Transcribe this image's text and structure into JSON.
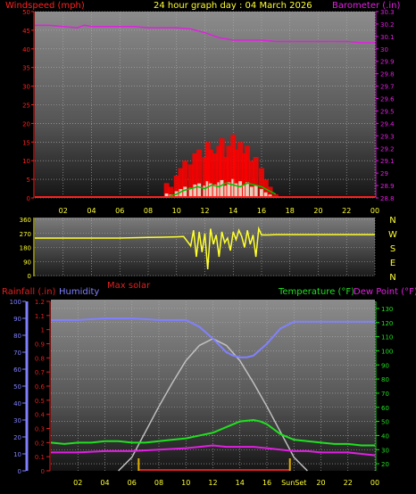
{
  "header": {
    "left_label": "Windspeed (mph)",
    "title": "24 hour graph day : 04 March 2026",
    "right_label": "Barometer (.in)"
  },
  "bottom_labels": {
    "rainfall": "Rainfall (.in)",
    "humidity": "Humidity",
    "max_solar": "Max solar",
    "temperature": "Temperature (°F)",
    "dew_point": "Dew Point (°F)"
  },
  "sun_labels": {
    "sunrise": "Sun",
    "sunset": "Set"
  },
  "colors": {
    "wind": "#ff2020",
    "gust_fill": "#ff0000",
    "avg_wind": "#00c000",
    "barometer": "#e020e0",
    "direction": "#ffff30",
    "humidity": "#8080ff",
    "temperature": "#20e020",
    "dew_point": "#e020e0",
    "solar": "#c0c0c0",
    "rain_axis": "#e02020",
    "sun_marker": "#e0b000"
  },
  "compass": [
    "N",
    "W",
    "S",
    "E",
    "N"
  ],
  "chart_data": [
    {
      "type": "line",
      "name": "wind_barometer",
      "x_ticks": [
        "02",
        "04",
        "06",
        "08",
        "10",
        "12",
        "14",
        "16",
        "18",
        "20",
        "22",
        "00"
      ],
      "ylabel": "Windspeed (mph)",
      "ylim": [
        0,
        50
      ],
      "y_ticks": [
        "0",
        "5",
        "10",
        "15",
        "20",
        "25",
        "30",
        "35",
        "40",
        "45",
        "50"
      ],
      "y2label": "Barometer (.in)",
      "y2lim": [
        28.8,
        30.3
      ],
      "y2_ticks": [
        "28.8",
        "28.9",
        "29",
        "29.1",
        "29.2",
        "29.3",
        "29.4",
        "29.5",
        "29.6",
        "29.7",
        "29.8",
        "29.9",
        "30",
        "30.1",
        "30.2",
        "30.3"
      ],
      "barometer": {
        "x": [
          0,
          1,
          2,
          3,
          3.5,
          4,
          5,
          6,
          7,
          8,
          9,
          10,
          11,
          12,
          12.5,
          13,
          13.5,
          14,
          15,
          16,
          17,
          18,
          19,
          20,
          21,
          22,
          23,
          24
        ],
        "y": [
          30.19,
          30.19,
          30.18,
          30.17,
          30.19,
          30.18,
          30.18,
          30.18,
          30.18,
          30.17,
          30.17,
          30.17,
          30.16,
          30.13,
          30.11,
          30.09,
          30.08,
          30.07,
          30.07,
          30.07,
          30.06,
          30.06,
          30.06,
          30.06,
          30.06,
          30.06,
          30.05,
          30.05
        ]
      },
      "wind": {
        "x": [
          9.3,
          9.6,
          10,
          10.3,
          10.6,
          11,
          11.3,
          11.6,
          12,
          12.2,
          12.4,
          12.7,
          13,
          13.2,
          13.5,
          13.7,
          14,
          14.2,
          14.5,
          14.8,
          15,
          15.3,
          15.6,
          16,
          16.3,
          16.6,
          17
        ],
        "y": [
          4,
          3,
          6,
          8,
          10,
          9,
          12,
          13,
          11,
          15,
          13,
          12,
          14,
          16,
          11,
          14,
          17,
          13,
          15,
          12,
          14,
          10,
          11,
          8,
          5,
          3,
          1
        ]
      },
      "avg_wind": {
        "x": [
          9.5,
          10,
          10.5,
          11,
          11.5,
          12,
          12.5,
          13,
          13.5,
          14,
          14.5,
          15,
          15.5,
          16,
          16.5,
          17
        ],
        "y": [
          0.5,
          1,
          2,
          2.5,
          3,
          2.5,
          3.5,
          3,
          4,
          3.5,
          3,
          4,
          3.5,
          3,
          2,
          1
        ]
      }
    },
    {
      "type": "scatter",
      "name": "wind_direction",
      "ylim": [
        0,
        360
      ],
      "y_ticks": [
        "0",
        "90",
        "180",
        "270",
        "360"
      ],
      "x": [
        0,
        1,
        2,
        3,
        4,
        5,
        6,
        7,
        8,
        9,
        10,
        10.5,
        11,
        11.2,
        11.4,
        11.6,
        11.8,
        12,
        12.2,
        12.4,
        12.6,
        12.8,
        13,
        13.2,
        13.4,
        13.6,
        13.8,
        14,
        14.2,
        14.4,
        14.6,
        14.8,
        15,
        15.2,
        15.4,
        15.6,
        15.8,
        16,
        16.5,
        17,
        18,
        19,
        20,
        21,
        22,
        23,
        24
      ],
      "y": [
        240,
        240,
        240,
        240,
        240,
        240,
        240,
        242,
        244,
        246,
        248,
        250,
        190,
        290,
        120,
        280,
        150,
        270,
        40,
        300,
        200,
        260,
        120,
        280,
        210,
        240,
        160,
        280,
        230,
        290,
        250,
        180,
        290,
        200,
        260,
        120,
        300,
        260,
        260,
        262,
        262,
        262,
        262,
        262,
        262,
        262,
        262
      ]
    },
    {
      "type": "line",
      "name": "temperature_humidity",
      "x_ticks": [
        "02",
        "04",
        "06",
        "08",
        "10",
        "12",
        "14",
        "16",
        "SunSet",
        "20",
        "22",
        "00"
      ],
      "y_left_humidity": [
        "0",
        "10",
        "20",
        "30",
        "40",
        "50",
        "60",
        "70",
        "80",
        "90",
        "100"
      ],
      "humidity_lim": [
        0,
        100
      ],
      "y_left_rain": [
        "0",
        "0.1",
        "0.2",
        "0.3",
        "0.4",
        "0.5",
        "0.6",
        "0.7",
        "0.8",
        "0.9",
        "1",
        "1.1",
        "1.2"
      ],
      "rain_lim": [
        0,
        1.2
      ],
      "y_right_temp": [
        "20",
        "30",
        "40",
        "50",
        "60",
        "70",
        "80",
        "90",
        "100",
        "110",
        "120",
        "130"
      ],
      "temp_lim": [
        15,
        135
      ],
      "humidity": {
        "x": [
          0,
          2,
          4,
          6,
          8,
          10,
          11,
          12,
          13,
          13.5,
          14,
          14.5,
          15,
          16,
          17,
          18,
          20,
          22,
          24
        ],
        "y": [
          89,
          89,
          90,
          90,
          89,
          89,
          85,
          78,
          70,
          68,
          67,
          67,
          68,
          75,
          84,
          88,
          88,
          88,
          88
        ]
      },
      "temperature": {
        "x": [
          0,
          1,
          2,
          3,
          4,
          5,
          6,
          7,
          8,
          9,
          10,
          11,
          12,
          13,
          14,
          15,
          15.5,
          16,
          17,
          18,
          19,
          20,
          21,
          22,
          23,
          24
        ],
        "y": [
          35,
          34,
          35,
          35,
          36,
          36,
          35,
          35,
          36,
          37,
          38,
          40,
          42,
          46,
          50,
          51,
          50,
          48,
          41,
          37,
          36,
          35,
          34,
          34,
          33,
          33
        ]
      },
      "dew_point": {
        "x": [
          0,
          2,
          4,
          6,
          8,
          10,
          11,
          12,
          13,
          14,
          15,
          16,
          17,
          18,
          19,
          20,
          22,
          24
        ],
        "y": [
          28,
          28,
          29,
          29,
          30,
          31,
          32,
          33,
          32,
          32,
          32,
          31,
          30,
          29,
          29,
          28,
          28,
          26
        ]
      },
      "max_solar": {
        "x": [
          5,
          6,
          7,
          8,
          9,
          10,
          11,
          12,
          13,
          14,
          15,
          16,
          17,
          18,
          19
        ],
        "y": [
          0,
          8,
          23,
          38,
          52,
          65,
          74,
          78,
          74,
          65,
          52,
          38,
          23,
          8,
          0
        ]
      },
      "rain": {
        "x": [],
        "y": []
      },
      "sunrise_x": 6.5,
      "sunset_x": 17.7
    }
  ]
}
